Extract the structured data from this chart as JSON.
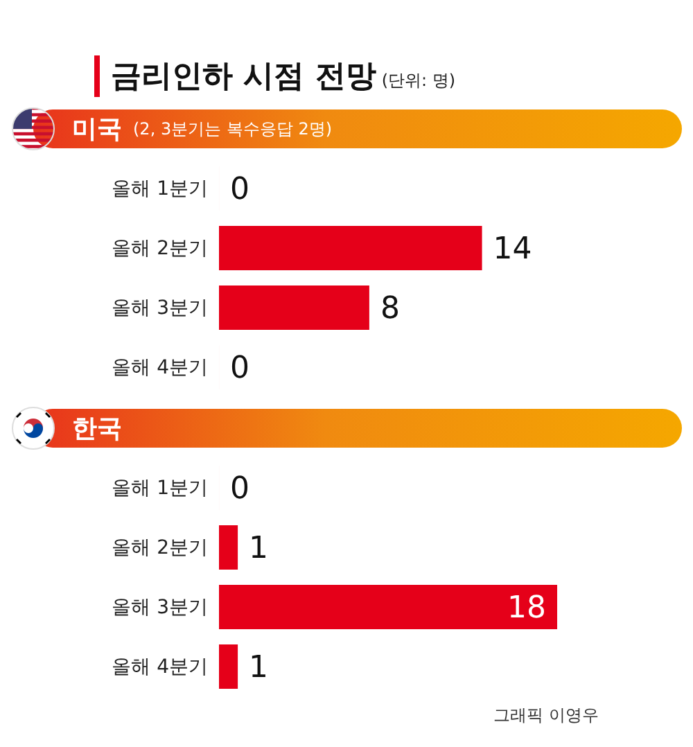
{
  "chart_data": [
    {
      "type": "other",
      "title": "금리인하 시점 전망",
      "subtitle": "(단위: 명)"
    },
    {
      "type": "bar",
      "orientation": "horizontal",
      "title": "미국",
      "subtitle": "(2, 3분기는 복수응답 2명)",
      "categories": [
        "올해 1분기",
        "올해 2분기",
        "올해 3분기",
        "올해 4분기"
      ],
      "values": [
        0,
        14,
        8,
        0
      ],
      "color": "#e50019",
      "data_labels": true
    },
    {
      "type": "bar",
      "orientation": "horizontal",
      "title": "한국",
      "categories": [
        "올해 1분기",
        "올해 2분기",
        "올해 3분기",
        "올해 4분기"
      ],
      "values": [
        0,
        1,
        18,
        1
      ],
      "color": "#e50019",
      "data_labels": true,
      "annotations": [
        "그래픽 이영우"
      ]
    }
  ]
}
